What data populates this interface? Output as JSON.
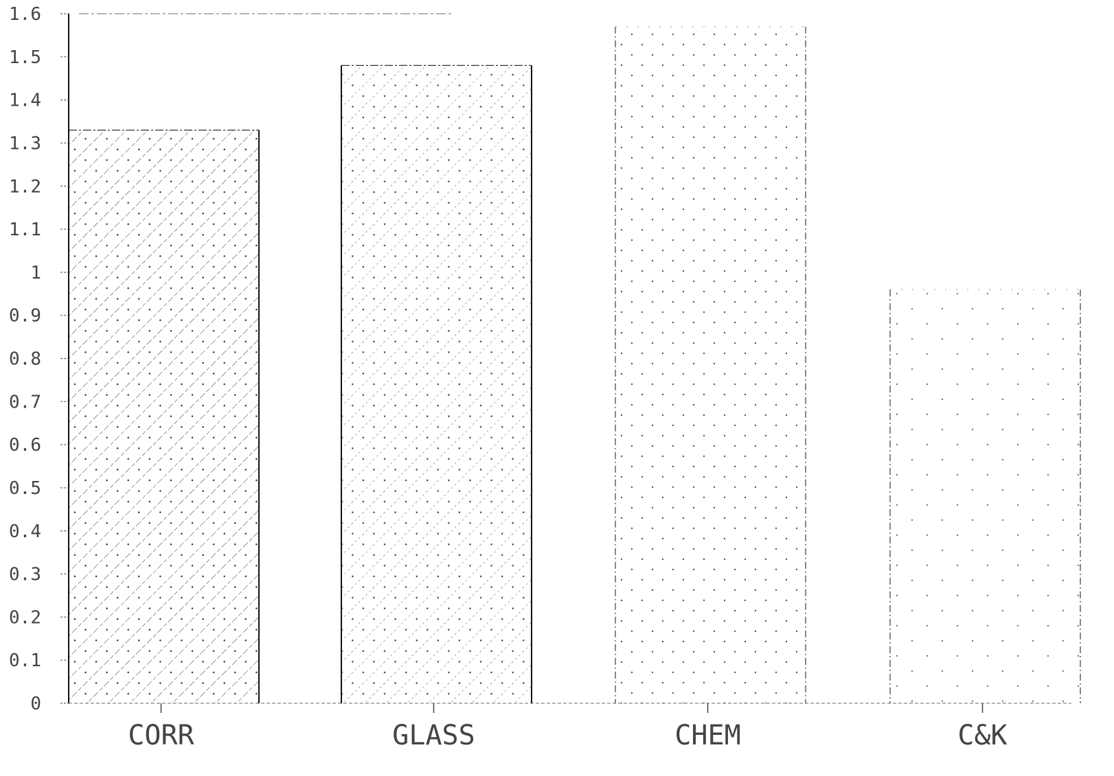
{
  "chart_data": {
    "type": "bar",
    "title": "",
    "xlabel": "",
    "ylabel": "",
    "categories": [
      "CORR",
      "GLASS",
      "CHEM",
      "C&K"
    ],
    "series": [
      {
        "values": [
          1.33,
          1.48,
          1.57,
          0.96
        ]
      }
    ],
    "ylim": [
      0,
      1.6
    ],
    "yticks": [
      "0",
      "0.1",
      "0.2",
      "0.3",
      "0.4",
      "0.5",
      "0.6",
      "0.7",
      "0.8",
      "0.9",
      "1",
      "1.1",
      "1.2",
      "1.3",
      "1.4",
      "1.5",
      "1.6"
    ],
    "ytick_values": [
      0,
      0.1,
      0.2,
      0.3,
      0.4,
      0.5,
      0.6,
      0.7,
      0.8,
      0.9,
      1,
      1.1,
      1.2,
      1.3,
      1.4,
      1.5,
      1.6
    ],
    "patterns": [
      "diagonal-hatch-dots",
      "diagonal-hatch-dots",
      "dots",
      "sparse-dots"
    ],
    "grid": false,
    "legend": "none",
    "colors": {
      "ink": "#222222",
      "light": "#777777",
      "background": "#ffffff"
    }
  }
}
